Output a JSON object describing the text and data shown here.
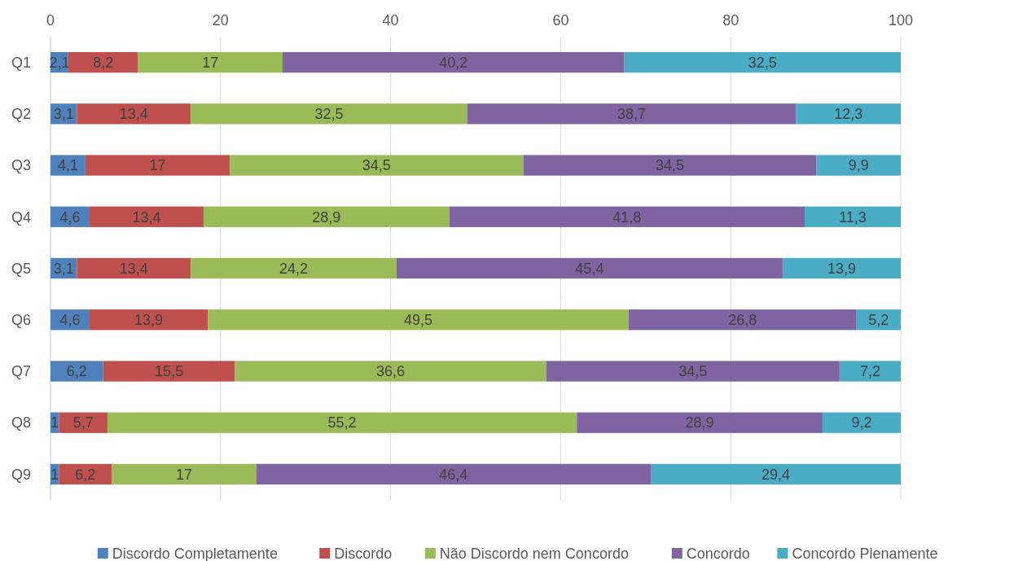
{
  "chart_data": {
    "type": "bar",
    "orientation": "horizontal",
    "stacked": true,
    "categories": [
      "Q1",
      "Q2",
      "Q3",
      "Q4",
      "Q5",
      "Q6",
      "Q7",
      "Q8",
      "Q9"
    ],
    "xlim": [
      0,
      100
    ],
    "xticks": [
      0,
      20,
      40,
      60,
      80,
      100
    ],
    "grid": "x",
    "legend": "bottom",
    "series": [
      {
        "name": "Discordo Completamente",
        "color": "#4f81bd",
        "values": [
          2.1,
          3.1,
          4.1,
          4.6,
          3.1,
          4.6,
          6.2,
          1,
          1
        ],
        "value_labels": [
          "2,1",
          "3,1",
          "4,1",
          "4,6",
          "3,1",
          "4,6",
          "6,2",
          "1",
          "1"
        ]
      },
      {
        "name": "Discordo",
        "color": "#c0504d",
        "values": [
          8.2,
          13.4,
          17,
          13.4,
          13.4,
          13.9,
          15.5,
          5.7,
          6.2
        ],
        "value_labels": [
          "8,2",
          "13,4",
          "17",
          "13,4",
          "13,4",
          "13,9",
          "15,5",
          "5,7",
          "6,2"
        ]
      },
      {
        "name": "Não Discordo nem Concordo",
        "color": "#9bbb59",
        "values": [
          17,
          32.5,
          34.5,
          28.9,
          24.2,
          49.5,
          36.6,
          55.2,
          17
        ],
        "value_labels": [
          "17",
          "32,5",
          "34,5",
          "28,9",
          "24,2",
          "49,5",
          "36,6",
          "55,2",
          "17"
        ]
      },
      {
        "name": "Concordo",
        "color": "#8064a2",
        "values": [
          40.2,
          38.7,
          34.5,
          41.8,
          45.4,
          26.8,
          34.5,
          28.9,
          46.4
        ],
        "value_labels": [
          "40,2",
          "38,7",
          "34,5",
          "41,8",
          "45,4",
          "26,8",
          "34,5",
          "28,9",
          "46,4"
        ]
      },
      {
        "name": "Concordo Plenamente",
        "color": "#4bacc6",
        "values": [
          32.5,
          12.3,
          9.9,
          11.3,
          13.9,
          5.2,
          7.2,
          9.2,
          29.4
        ],
        "value_labels": [
          "32,5",
          "12,3",
          "9,9",
          "11,3",
          "13,9",
          "5,2",
          "7,2",
          "9,2",
          "29,4"
        ]
      }
    ]
  }
}
